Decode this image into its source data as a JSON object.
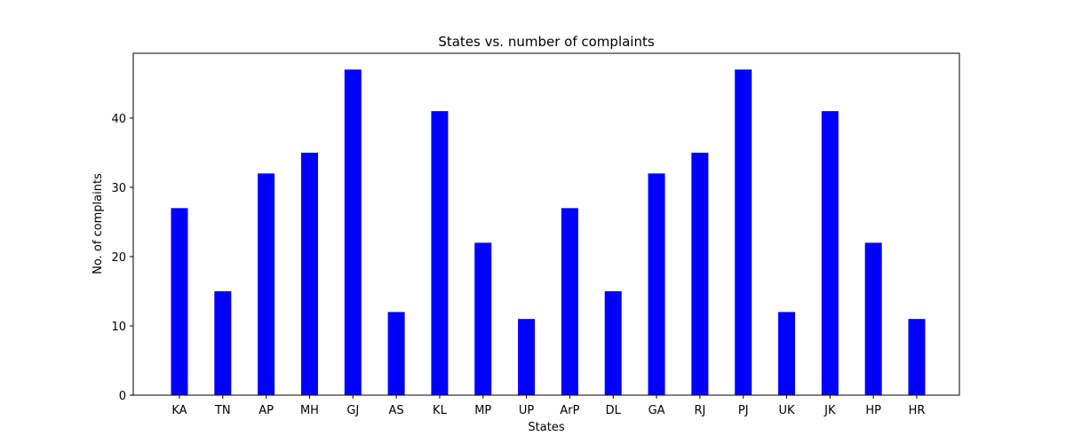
{
  "chart_data": {
    "type": "bar",
    "title": "States vs. number of complaints",
    "xlabel": "States",
    "ylabel": "No. of complaints",
    "categories": [
      "KA",
      "TN",
      "AP",
      "MH",
      "GJ",
      "AS",
      "KL",
      "MP",
      "UP",
      "ArP",
      "DL",
      "GA",
      "RJ",
      "PJ",
      "UK",
      "JK",
      "HP",
      "HR"
    ],
    "values": [
      27,
      15,
      32,
      35,
      47,
      12,
      41,
      22,
      11,
      27,
      15,
      32,
      35,
      47,
      12,
      41,
      22,
      11
    ],
    "ylim": [
      0,
      49.35
    ],
    "yticks": [
      0,
      10,
      20,
      30,
      40
    ],
    "bar_color": "#0000ff",
    "grid": false,
    "legend": "none"
  }
}
